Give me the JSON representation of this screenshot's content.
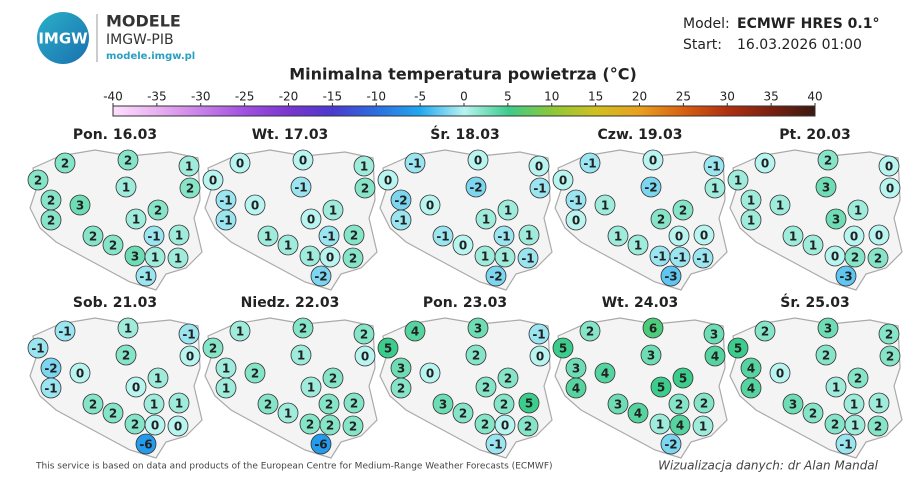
{
  "header": {
    "logo": "IMGW",
    "brand": "MODELE",
    "org": "IMGW-PIB",
    "url": "modele.imgw.pl",
    "model_label": "Model:",
    "model": "ECMWF HRES 0.1°",
    "start_label": "Start:",
    "start": "16.03.2026 01:00"
  },
  "chart_data": {
    "type": "station-map",
    "title": "Minimalna temperatura powietrza (°C)",
    "colorbar": {
      "ticks": [
        -40,
        -35,
        -30,
        -25,
        -20,
        -15,
        -10,
        -5,
        0,
        5,
        10,
        15,
        20,
        25,
        30,
        35,
        40
      ],
      "colors": [
        "#fde0fd",
        "#e8b0f0",
        "#c880e8",
        "#a050e0",
        "#7a35d0",
        "#4a3ad0",
        "#2c6ee0",
        "#22a8f0",
        "#b8f4f0",
        "#3ccc8c",
        "#8cc838",
        "#d0c020",
        "#e8a020",
        "#d86010",
        "#b03010",
        "#7a2010",
        "#3a1a10"
      ]
    },
    "maps": [
      {
        "title": "Pon. 16.03",
        "values": [
          2,
          2,
          1,
          2,
          1,
          2,
          2,
          3,
          2,
          2,
          1,
          2,
          -1,
          1,
          2,
          3,
          1,
          1,
          -1
        ]
      },
      {
        "title": "Wt. 17.03",
        "values": [
          0,
          0,
          1,
          0,
          -1,
          2,
          -1,
          0,
          1,
          -1,
          0,
          1,
          -1,
          2,
          1,
          1,
          0,
          2,
          -2
        ]
      },
      {
        "title": "Śr. 18.03",
        "values": [
          -1,
          0,
          0,
          0,
          -2,
          -1,
          -2,
          0,
          1,
          -1,
          1,
          -1,
          -1,
          1,
          0,
          1,
          1,
          -1,
          -2
        ]
      },
      {
        "title": "Czw. 19.03",
        "values": [
          -1,
          0,
          -1,
          0,
          -2,
          1,
          -1,
          1,
          2,
          0,
          2,
          1,
          0,
          0,
          1,
          -1,
          -1,
          -1,
          -3
        ]
      },
      {
        "title": "Pt. 20.03",
        "values": [
          0,
          2,
          0,
          1,
          3,
          0,
          1,
          1,
          1,
          1,
          3,
          1,
          0,
          0,
          1,
          0,
          2,
          2,
          -3
        ]
      },
      {
        "title": "Sob. 21.03",
        "values": [
          -1,
          1,
          -1,
          -1,
          2,
          0,
          -2,
          0,
          1,
          -1,
          0,
          2,
          1,
          1,
          2,
          2,
          0,
          0,
          -6
        ]
      },
      {
        "title": "Niedz. 22.03",
        "values": [
          1,
          2,
          2,
          2,
          1,
          0,
          1,
          2,
          2,
          1,
          1,
          2,
          2,
          2,
          1,
          2,
          2,
          2,
          -6
        ]
      },
      {
        "title": "Pon. 23.03",
        "values": [
          4,
          3,
          -1,
          5,
          2,
          0,
          3,
          0,
          2,
          2,
          2,
          3,
          2,
          5,
          2,
          2,
          0,
          2,
          -1
        ]
      },
      {
        "title": "Wt. 24.03",
        "values": [
          2,
          6,
          3,
          5,
          3,
          4,
          3,
          4,
          5,
          4,
          5,
          3,
          2,
          2,
          4,
          1,
          4,
          1,
          -2
        ]
      },
      {
        "title": "Śr. 25.03",
        "values": [
          2,
          3,
          2,
          5,
          2,
          2,
          4,
          0,
          2,
          4,
          1,
          3,
          1,
          1,
          2,
          2,
          1,
          2,
          -1
        ]
      }
    ]
  },
  "footer": {
    "source": "This service is based on data and products of the European Centre for Medium-Range Weather Forecasts (ECMWF)",
    "credit": "Wizualizacja danych: dr Alan Mandal"
  }
}
